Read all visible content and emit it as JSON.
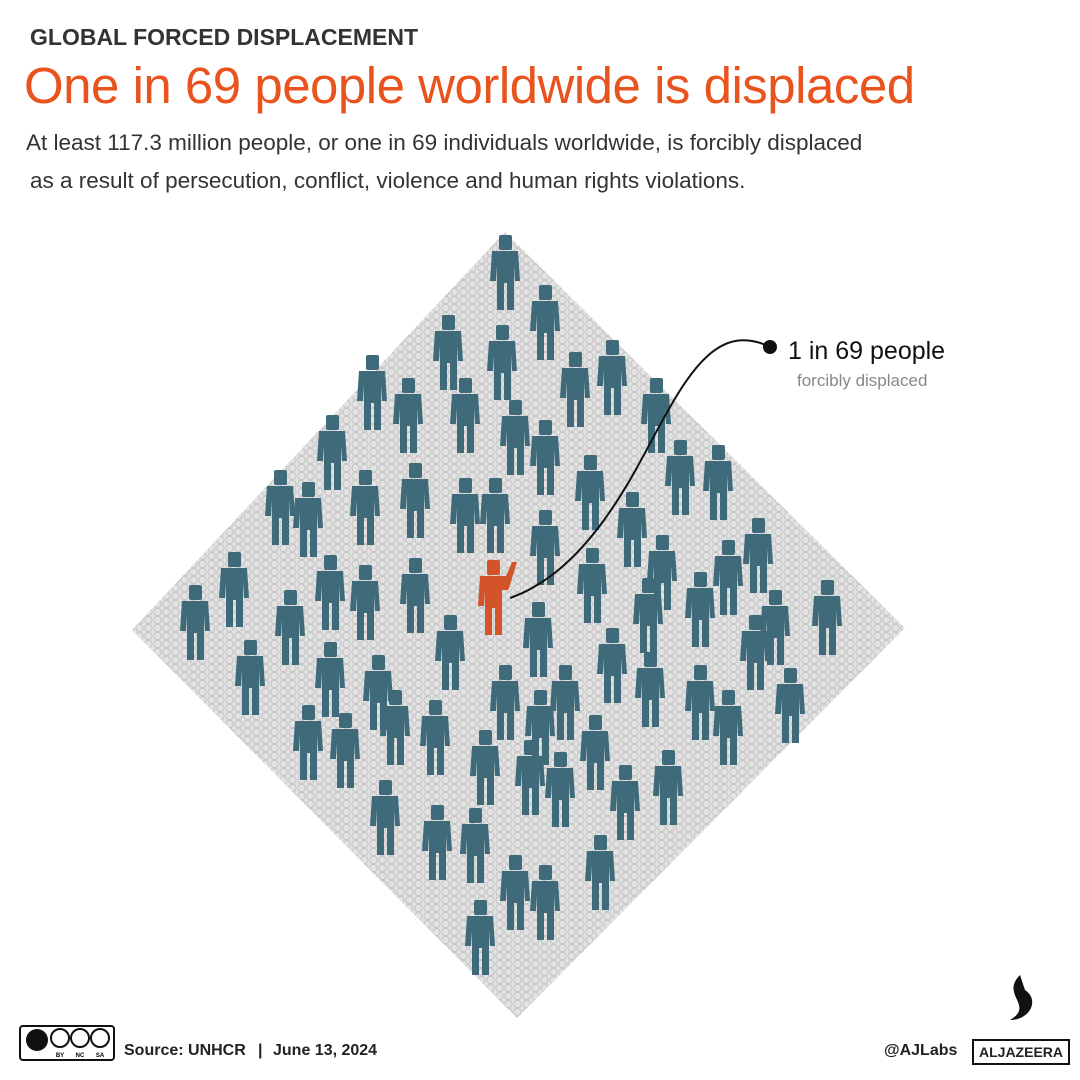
{
  "header": {
    "kicker": "GLOBAL FORCED DISPLACEMENT",
    "title": "One in 69 people worldwide is displaced",
    "subtitle": [
      "At least 117.3 million people, or one in 69 individuals worldwide, is forcibly displaced",
      "as a result of persecution, conflict, violence and human rights violations."
    ]
  },
  "annotation": {
    "headline": "1 in 69 people",
    "note": "forcibly displaced"
  },
  "footer": {
    "license": [
      "BY",
      "NC",
      "SA"
    ],
    "source": "Source: UNHCR",
    "separator": "|",
    "date": "June 13, 2024",
    "credit": "@AJLabs",
    "brand": "ALJAZEERA"
  }
}
